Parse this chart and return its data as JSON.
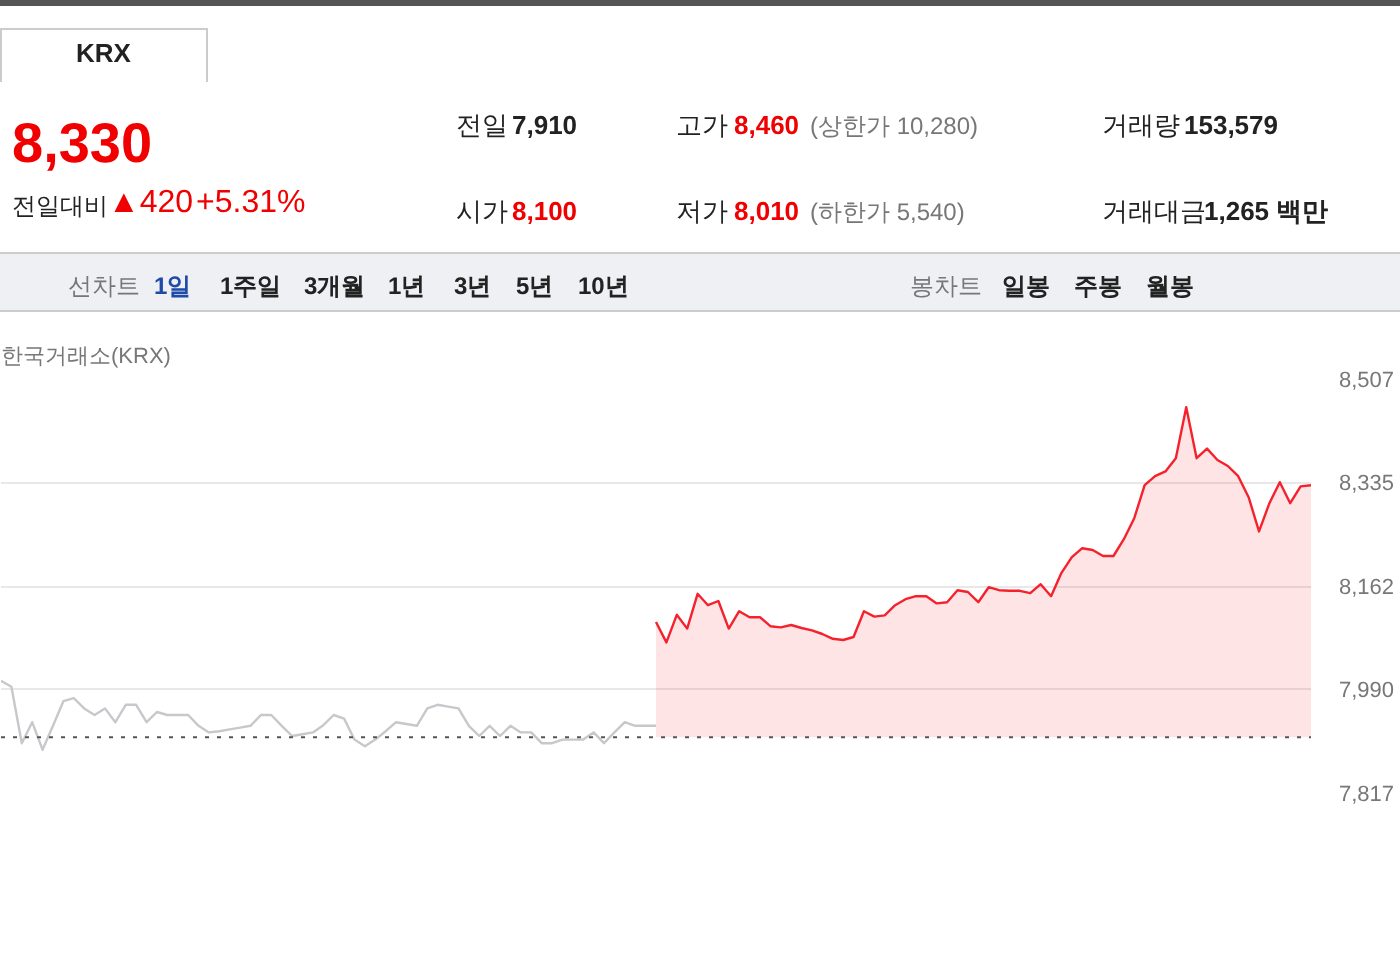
{
  "chart_data": {
    "type": "line",
    "title": "한국거래소(KRX)",
    "annotations": [
      "KRX",
      "8,330",
      "전일대비",
      "▲420",
      "+5.31%",
      "전일",
      "7,910",
      "고가",
      "8,460",
      "(상한가 10,280)",
      "거래량",
      "153,579",
      "시가",
      "8,100",
      "저가",
      "8,010",
      "(하한가 5,540)",
      "거래대금",
      "1,265 백만",
      "선차트",
      "1일",
      "1주일",
      "3개월",
      "1년",
      "3년",
      "5년",
      "10년",
      "봉차트",
      "일봉",
      "주봉",
      "월봉"
    ],
    "categories": [
      null,
      null,
      null,
      null,
      null,
      null,
      null,
      null,
      null,
      null,
      null,
      null,
      null,
      null,
      null,
      null,
      null,
      null,
      null,
      null,
      null,
      null,
      null,
      null,
      null,
      null,
      null,
      null,
      null,
      null,
      null,
      null,
      null,
      null,
      null,
      null,
      null,
      null,
      null,
      null,
      null,
      null,
      null,
      null,
      null,
      null,
      null,
      null,
      null,
      null,
      null,
      null,
      null,
      null,
      null,
      null,
      null,
      null,
      null,
      null,
      null,
      null,
      null,
      null,
      null,
      null,
      null,
      null,
      null,
      null,
      null,
      null,
      null,
      null,
      null,
      null,
      null,
      null,
      null,
      null,
      null,
      null,
      null,
      null,
      null,
      null,
      null,
      null,
      null,
      null,
      null,
      null,
      null,
      null,
      null,
      null,
      null,
      null,
      null,
      null,
      null,
      null,
      null,
      null,
      null,
      null,
      null,
      null,
      null,
      null,
      null,
      null,
      null,
      null,
      null,
      null,
      null,
      null,
      null,
      null,
      null,
      null,
      null,
      null,
      null,
      null,
      null
    ],
    "ylim": [
      7817,
      8507
    ],
    "yticks": [
      {
        "value": 7817,
        "label": "7,817"
      },
      {
        "value": 7990,
        "label": "7,990"
      },
      {
        "value": 8162,
        "label": "8,162"
      },
      {
        "value": 8335,
        "label": "8,335"
      },
      {
        "value": 8507,
        "label": "8,507"
      }
    ],
    "grid": "y",
    "tick_labels": "y",
    "line_style": "solid",
    "ref_lines": [
      {
        "axis": "y",
        "value": 7910,
        "color": "#555555",
        "line_style": "dotted"
      }
    ],
    "series": [
      {
        "color": "#c8c8cc",
        "values": [
          8004,
          7994,
          7900,
          7935,
          7889,
          7929,
          7970,
          7975,
          7958,
          7947,
          7958,
          7935,
          7964,
          7964,
          7935,
          7952,
          7947,
          7947,
          7947,
          7929,
          7918,
          7920,
          7923,
          7926,
          7929,
          7947,
          7947,
          7929,
          7912,
          7915,
          7918,
          7930,
          7947,
          7941,
          7906,
          7895,
          7906,
          7920,
          7935,
          7932,
          7929,
          7958,
          7964,
          7961,
          7958,
          7929,
          7912,
          7929,
          7912,
          7929,
          7918,
          7918,
          7900,
          7900,
          7906,
          7906,
          7906,
          7918,
          7900,
          7918,
          7935,
          7929,
          7929,
          7929,
          null,
          null,
          null,
          null,
          null,
          null,
          null,
          null,
          null,
          null,
          null,
          null,
          null,
          null,
          null,
          null,
          null,
          null,
          null,
          null,
          null,
          null,
          null,
          null,
          null,
          null,
          null,
          null,
          null,
          null,
          null,
          null,
          null,
          null,
          null,
          null,
          null,
          null,
          null,
          null,
          null,
          null,
          null,
          null,
          null,
          null,
          null,
          null,
          null,
          null,
          null,
          null,
          null,
          null,
          null,
          null,
          null,
          null,
          null,
          null,
          null,
          null,
          null
        ]
      },
      {
        "type": "area",
        "color": "#f5222d",
        "values": [
          null,
          null,
          null,
          null,
          null,
          null,
          null,
          null,
          null,
          null,
          null,
          null,
          null,
          null,
          null,
          null,
          null,
          null,
          null,
          null,
          null,
          null,
          null,
          null,
          null,
          null,
          null,
          null,
          null,
          null,
          null,
          null,
          null,
          null,
          null,
          null,
          null,
          null,
          null,
          null,
          null,
          null,
          null,
          null,
          null,
          null,
          null,
          null,
          null,
          null,
          null,
          null,
          null,
          null,
          null,
          null,
          null,
          null,
          null,
          null,
          null,
          null,
          null,
          8102,
          8068,
          8114,
          8091,
          8149,
          8130,
          8137,
          8091,
          8120,
          8110,
          8110,
          8095,
          8093,
          8097,
          8092,
          8088,
          8082,
          8074,
          8072,
          8077,
          8120,
          8111,
          8113,
          8130,
          8140,
          8145,
          8145,
          8133,
          8135,
          8155,
          8152,
          8135,
          8160,
          8155,
          8154,
          8154,
          8150,
          8165,
          8145,
          8184,
          8210,
          8225,
          8222,
          8212,
          8212,
          8240,
          8275,
          8330,
          8345,
          8353,
          8375,
          8460,
          8375,
          8391,
          8372,
          8362,
          8345,
          8310,
          8253,
          8300,
          8335,
          8300,
          8328,
          8330
        ]
      }
    ]
  }
}
